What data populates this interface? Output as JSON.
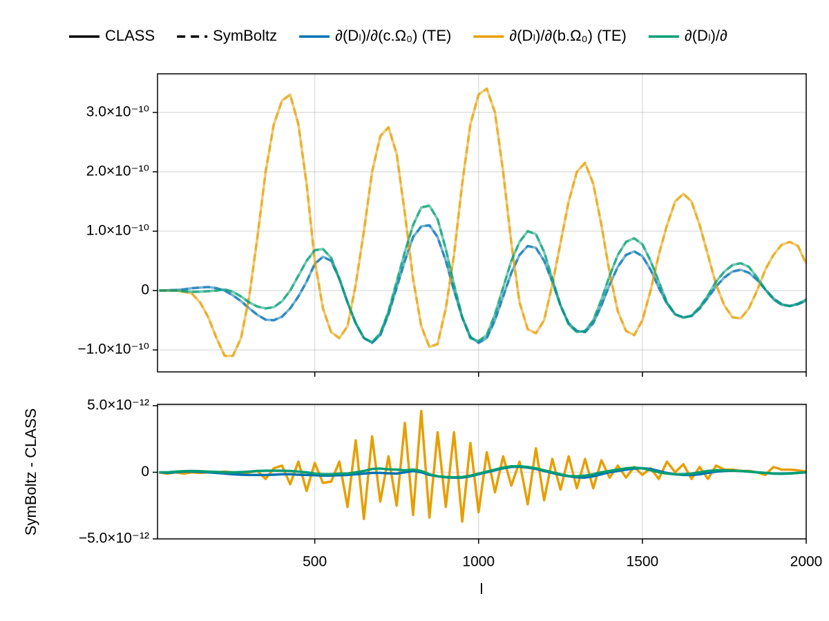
{
  "chart_data": [
    {
      "type": "line",
      "legend_styles": [
        {
          "name": "CLASS",
          "dash": "solid"
        },
        {
          "name": "SymBoltz",
          "dash": "dashed"
        }
      ],
      "x": [
        25,
        50,
        75,
        100,
        125,
        150,
        175,
        200,
        225,
        250,
        275,
        300,
        325,
        350,
        375,
        400,
        425,
        450,
        475,
        500,
        525,
        550,
        575,
        600,
        625,
        650,
        675,
        700,
        725,
        750,
        775,
        800,
        825,
        850,
        875,
        900,
        925,
        950,
        975,
        1000,
        1025,
        1050,
        1075,
        1100,
        1125,
        1150,
        1175,
        1200,
        1225,
        1250,
        1275,
        1300,
        1325,
        1350,
        1375,
        1400,
        1425,
        1450,
        1475,
        1500,
        1525,
        1550,
        1575,
        1600,
        1625,
        1650,
        1675,
        1700,
        1725,
        1750,
        1775,
        1800,
        1825,
        1850,
        1875,
        1900,
        1925,
        1950,
        1975,
        2000
      ],
      "xlim": [
        20,
        2000
      ],
      "xticks": [
        500,
        1000,
        1500,
        2000
      ],
      "ylim": [
        -1.37e-10,
        3.65e-10
      ],
      "yticks": [
        {
          "value": -1e-10,
          "label": "−1.0×10⁻¹⁰"
        },
        0,
        {
          "value": 1e-10,
          "label": "1.0×10⁻¹⁰"
        },
        {
          "value": 2e-10,
          "label": "2.0×10⁻¹⁰"
        },
        {
          "value": 3e-10,
          "label": "3.0×10⁻¹⁰"
        }
      ],
      "grid": true,
      "series": [
        {
          "name": "∂(Dₗ)/∂(c.Ω₀) (TE)",
          "color": "#0072b2",
          "values": [
            0,
            5e-13,
            1e-12,
            2e-12,
            4e-12,
            5e-12,
            6e-12,
            4e-12,
            0,
            -8e-12,
            -1.8e-11,
            -3e-11,
            -4.1e-11,
            -4.9e-11,
            -5e-11,
            -4.4e-11,
            -3e-11,
            -1e-11,
            1.5e-11,
            4.5e-11,
            5.7e-11,
            5e-11,
            2e-11,
            -2e-11,
            -5.5e-11,
            -8e-11,
            -8.8e-11,
            -7.5e-11,
            -4e-11,
            5e-12,
            5e-11,
            9e-11,
            1.08e-10,
            1.1e-10,
            9e-11,
            5e-11,
            0,
            -4.5e-11,
            -7.8e-11,
            -8.8e-11,
            -8e-11,
            -5e-11,
            -1e-11,
            3e-11,
            6e-11,
            7.5e-11,
            7.2e-11,
            5e-11,
            1.5e-11,
            -2.5e-11,
            -5.5e-11,
            -6.8e-11,
            -7e-11,
            -5.5e-11,
            -2.5e-11,
            1e-11,
            4e-11,
            6e-11,
            6.6e-11,
            5.8e-11,
            3.5e-11,
            5e-12,
            -2.2e-11,
            -4e-11,
            -4.5e-11,
            -4.3e-11,
            -3e-11,
            -1.2e-11,
            7e-12,
            2.2e-11,
            3.2e-11,
            3.5e-11,
            3e-11,
            1.8e-11,
            2e-12,
            -1.3e-11,
            -2.3e-11,
            -2.6e-11,
            -2.3e-11,
            -1.7e-11
          ]
        },
        {
          "name": "∂(Dₗ)/∂(b.Ω₀) (TE)",
          "color": "#e69f00",
          "values": [
            0,
            0,
            0,
            -2e-12,
            -5e-12,
            -2e-11,
            -4.5e-11,
            -8e-11,
            -1.1e-10,
            -1.1e-10,
            -8e-11,
            -1e-11,
            9e-11,
            2e-10,
            2.8e-10,
            3.2e-10,
            3.3e-10,
            2.8e-10,
            1.8e-10,
            5e-11,
            -3e-11,
            -7e-11,
            -8e-11,
            -6e-11,
            1e-11,
            1e-10,
            2e-10,
            2.6e-10,
            2.75e-10,
            2.3e-10,
            1.3e-10,
            2e-11,
            -6e-11,
            -9.5e-11,
            -9e-11,
            -3e-11,
            6e-11,
            1.8e-10,
            2.8e-10,
            3.3e-10,
            3.4e-10,
            3e-10,
            2e-10,
            8e-11,
            -2e-11,
            -6.5e-11,
            -7.2e-11,
            -5e-11,
            1e-11,
            8e-11,
            1.5e-10,
            2e-10,
            2.15e-10,
            1.8e-10,
            1.1e-10,
            3e-11,
            -3.5e-11,
            -6.8e-11,
            -7.5e-11,
            -5e-11,
            0,
            6e-11,
            1.1e-10,
            1.5e-10,
            1.63e-10,
            1.5e-10,
            1.1e-10,
            6e-11,
            1e-11,
            -2.5e-11,
            -4.5e-11,
            -4.7e-11,
            -3e-11,
            0,
            3.5e-11,
            6e-11,
            7.7e-11,
            8.2e-11,
            7.5e-11,
            4.5e-11
          ]
        },
        {
          "name": "∂(Dₗ)/∂",
          "color": "#009e73",
          "values": [
            0,
            0,
            0,
            -1e-12,
            -2e-12,
            -2e-12,
            -1e-12,
            0,
            2e-12,
            -2e-12,
            -1e-11,
            -2e-11,
            -2.7e-11,
            -3e-11,
            -2.8e-11,
            -1.8e-11,
            0,
            2.5e-11,
            5e-11,
            6.8e-11,
            7e-11,
            5.5e-11,
            2e-11,
            -2e-11,
            -5.5e-11,
            -8e-11,
            -8.7e-11,
            -7.2e-11,
            -3.5e-11,
            1.5e-11,
            6.5e-11,
            1.1e-10,
            1.4e-10,
            1.43e-10,
            1.2e-10,
            7e-11,
            1e-11,
            -4.5e-11,
            -8e-11,
            -8.5e-11,
            -7.5e-11,
            -4e-11,
            5e-12,
            5e-11,
            8.2e-11,
            1e-10,
            9.5e-11,
            6.5e-11,
            2e-11,
            -2.5e-11,
            -5.7e-11,
            -7e-11,
            -6.8e-11,
            -5e-11,
            -1.5e-11,
            2.5e-11,
            6e-11,
            8.2e-11,
            8.8e-11,
            7.8e-11,
            5e-11,
            1.5e-11,
            -2e-11,
            -4e-11,
            -4.6e-11,
            -4.2e-11,
            -2.8e-11,
            -8e-12,
            1.5e-11,
            3.2e-11,
            4.3e-11,
            4.6e-11,
            4e-11,
            2.2e-11,
            2e-12,
            -1.5e-11,
            -2.4e-11,
            -2.6e-11,
            -2.2e-11,
            -1.5e-11
          ]
        }
      ]
    },
    {
      "type": "line",
      "xlabel": "l",
      "ylabel": "SymBoltz - CLASS",
      "x": [
        25,
        50,
        75,
        100,
        125,
        150,
        175,
        200,
        225,
        250,
        275,
        300,
        325,
        350,
        375,
        400,
        425,
        450,
        475,
        500,
        525,
        550,
        575,
        600,
        625,
        650,
        675,
        700,
        725,
        750,
        775,
        800,
        825,
        850,
        875,
        900,
        925,
        950,
        975,
        1000,
        1025,
        1050,
        1075,
        1100,
        1125,
        1150,
        1175,
        1200,
        1225,
        1250,
        1275,
        1300,
        1325,
        1350,
        1375,
        1400,
        1425,
        1450,
        1475,
        1500,
        1525,
        1550,
        1575,
        1600,
        1625,
        1650,
        1675,
        1700,
        1725,
        1750,
        1775,
        1800,
        1825,
        1850,
        1875,
        1900,
        1925,
        1950,
        1975,
        2000
      ],
      "xlim": [
        20,
        2000
      ],
      "xticks": [
        500,
        1000,
        1500,
        2000
      ],
      "ylim": [
        -5e-12,
        5.1e-12
      ],
      "yticks": [
        {
          "value": -5e-12,
          "label": "−5.0×10⁻¹²"
        },
        0,
        {
          "value": 5e-12,
          "label": "5.0×10⁻¹²"
        }
      ],
      "grid": true,
      "series": [
        {
          "color": "#e69f00",
          "values": [
            0,
            -1e-13,
            0,
            -1e-13,
            0,
            -5e-14,
            0,
            0,
            5e-14,
            0,
            -5e-14,
            0,
            1e-13,
            -5e-13,
            3e-13,
            5e-13,
            -9e-13,
            8e-13,
            -1.4e-12,
            7e-13,
            -8e-13,
            -7e-13,
            8e-13,
            -2.6e-12,
            2.4e-12,
            -3.5e-12,
            2.7e-12,
            -2.2e-12,
            1.2e-12,
            -2.5e-12,
            3.7e-12,
            -3.2e-12,
            4.6e-12,
            -3.4e-12,
            3e-12,
            -2.6e-12,
            3e-12,
            -3.7e-12,
            2.2e-12,
            -3e-12,
            1.5e-12,
            -1.5e-12,
            1.2e-12,
            -1e-12,
            8e-13,
            -2.4e-12,
            1.8e-12,
            -2.1e-12,
            1e-12,
            -1.3e-12,
            1.2e-12,
            -1.2e-12,
            1e-12,
            -1.2e-12,
            9e-13,
            -4e-13,
            5e-13,
            -4e-13,
            4e-13,
            -2e-13,
            3e-13,
            -5e-13,
            8e-13,
            0,
            6e-13,
            -5e-13,
            4e-13,
            -5e-13,
            5e-13,
            2e-13,
            2e-13,
            1e-13,
            1e-13,
            0,
            -2e-13,
            4e-13,
            2e-13,
            2e-13,
            1.5e-13,
            5e-14
          ]
        },
        {
          "color": "#0072b2",
          "values": [
            0,
            -5e-14,
            0,
            5e-14,
            5e-14,
            3e-14,
            0,
            -5e-14,
            -1e-13,
            -1.5e-13,
            -1.8e-13,
            -2e-13,
            -2e-13,
            -2e-13,
            -1.8e-13,
            -1.5e-13,
            -1.5e-13,
            -1.8e-13,
            -2e-13,
            -2.2e-13,
            -2.5e-13,
            -2.5e-13,
            -2.2e-13,
            -2e-13,
            -1.5e-13,
            -1e-13,
            -5e-14,
            -5e-14,
            -8e-14,
            -1e-13,
            0,
            1e-13,
            0,
            -2e-13,
            -3e-13,
            -3.8e-13,
            -4e-13,
            -4e-13,
            -3e-13,
            -1.5e-13,
            0,
            1.5e-13,
            3e-13,
            4e-13,
            4.2e-13,
            3.5e-13,
            2.5e-13,
            1e-13,
            -5e-14,
            -2e-13,
            -3e-13,
            -3.8e-13,
            -4e-13,
            -3e-13,
            -1.5e-13,
            0,
            1e-13,
            2e-13,
            2.8e-13,
            3e-13,
            2.5e-13,
            1e-13,
            -5e-14,
            -1.5e-13,
            -2e-13,
            -2e-13,
            -1.5e-13,
            -5e-14,
            5e-14,
            1e-13,
            1.2e-13,
            1e-13,
            5e-14,
            0,
            -5e-14,
            -1e-13,
            -1e-13,
            -8e-14,
            -5e-14,
            0
          ]
        },
        {
          "color": "#009e73",
          "values": [
            0,
            0,
            5e-14,
            8e-14,
            1e-13,
            8e-14,
            5e-14,
            3e-14,
            0,
            0,
            2e-14,
            5e-14,
            1e-13,
            1.2e-13,
            1.2e-13,
            1.2e-13,
            1e-13,
            5e-14,
            0,
            -1e-13,
            -1.5e-13,
            -1.5e-13,
            -1e-13,
            -1e-13,
            0,
            1e-13,
            2.5e-13,
            2.8e-13,
            2.2e-13,
            2e-13,
            1.5e-13,
            2e-13,
            1e-13,
            -1.5e-13,
            -3e-13,
            -3.5e-13,
            -3.8e-13,
            -3.5e-13,
            -2.5e-13,
            -1e-13,
            5e-14,
            2e-13,
            3.5e-13,
            4.5e-13,
            4.5e-13,
            4e-13,
            3e-13,
            1.5e-13,
            0,
            -1.5e-13,
            -2.8e-13,
            -3e-13,
            -2.5e-13,
            -1.5e-13,
            0,
            1e-13,
            2e-13,
            3e-13,
            3.5e-13,
            3e-13,
            1.5e-13,
            0,
            -1e-13,
            -1.5e-13,
            -1.5e-13,
            -1e-13,
            0,
            1e-13,
            1.5e-13,
            1.5e-13,
            1.2e-13,
            1e-13,
            5e-14,
            0,
            -5e-14,
            -1e-13,
            -1.2e-13,
            -1e-13,
            -5e-14,
            0
          ]
        }
      ]
    }
  ]
}
